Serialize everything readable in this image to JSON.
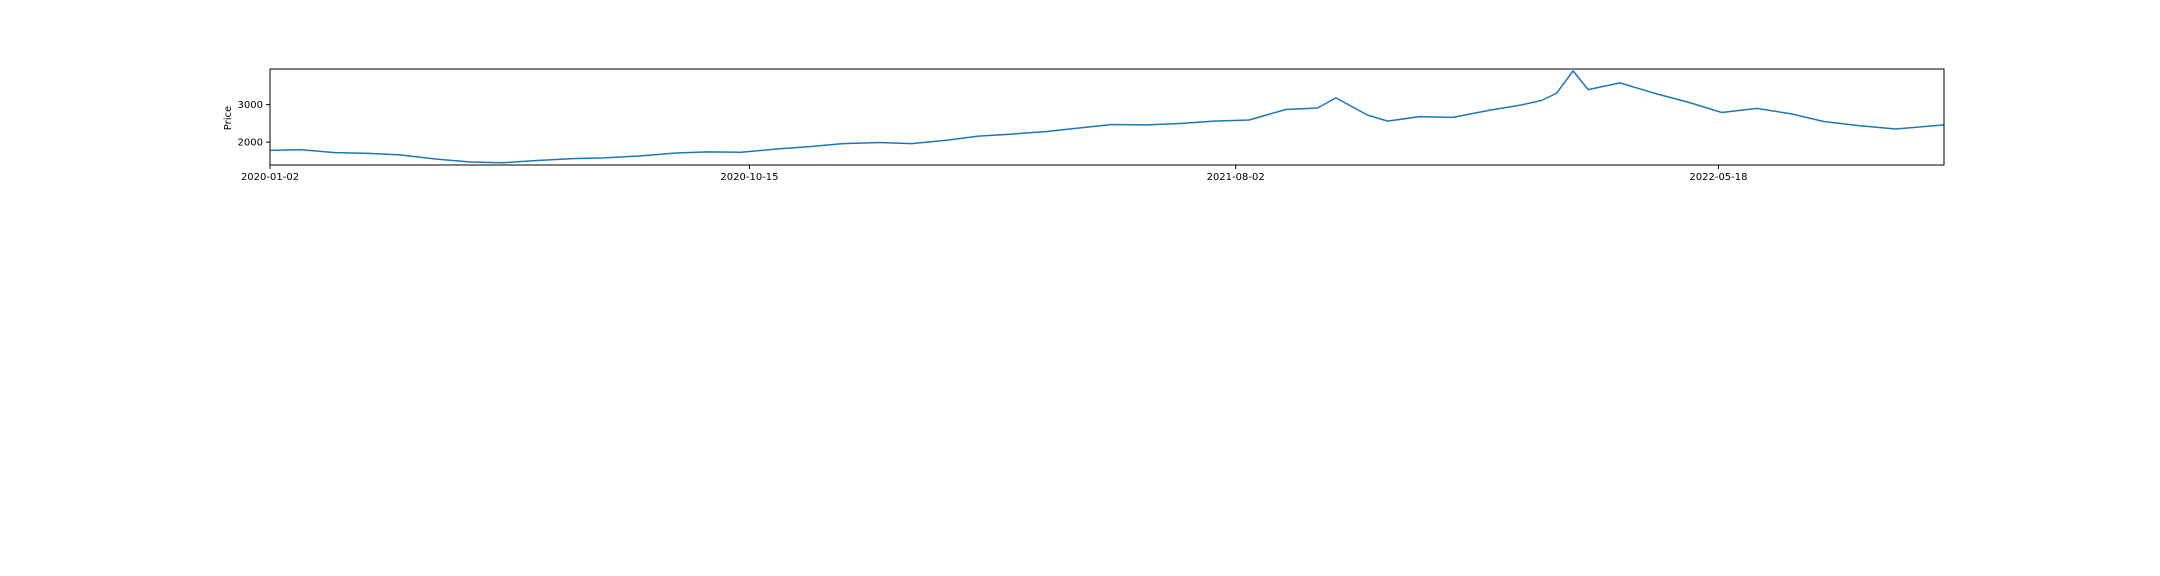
{
  "chart_data": {
    "type": "line",
    "ylabel": "Price",
    "xlabel": "",
    "x_tick_labels": [
      "2020-01-02",
      "2020-10-15",
      "2021-08-02",
      "2022-05-18"
    ],
    "x_tick_dates": [
      "2020-01-02",
      "2020-10-15",
      "2021-08-02",
      "2022-05-18"
    ],
    "xlim": [
      "2020-01-02",
      "2022-09-30"
    ],
    "y_ticks": [
      2000,
      3000
    ],
    "y_tick_labels": [
      "2000",
      "3000"
    ],
    "ylim": [
      1390,
      3950
    ],
    "grid": false,
    "legend": "none",
    "line_color": "#1f77b4",
    "series": [
      {
        "x": [
          "2020-01-02",
          "2020-01-20",
          "2020-02-10",
          "2020-03-01",
          "2020-03-20",
          "2020-04-10",
          "2020-05-01",
          "2020-05-20",
          "2020-06-10",
          "2020-07-01",
          "2020-07-20",
          "2020-08-10",
          "2020-09-01",
          "2020-09-20",
          "2020-10-10",
          "2020-11-01",
          "2020-11-20",
          "2020-12-10",
          "2021-01-01",
          "2021-01-20",
          "2021-02-10",
          "2021-03-01",
          "2021-03-20",
          "2021-04-10",
          "2021-05-01",
          "2021-05-20",
          "2021-06-10",
          "2021-07-01",
          "2021-07-20",
          "2021-08-10",
          "2021-09-01",
          "2021-09-20",
          "2021-10-01",
          "2021-10-20",
          "2021-11-01",
          "2021-11-20",
          "2021-12-10",
          "2022-01-01",
          "2022-01-20",
          "2022-02-01",
          "2022-02-10",
          "2022-02-20",
          "2022-03-01",
          "2022-03-20",
          "2022-04-10",
          "2022-05-01",
          "2022-05-20",
          "2022-06-10",
          "2022-07-01",
          "2022-07-20",
          "2022-08-10",
          "2022-09-01",
          "2022-09-30"
        ],
        "values": [
          1780,
          1800,
          1720,
          1700,
          1660,
          1550,
          1470,
          1450,
          1510,
          1560,
          1580,
          1630,
          1710,
          1740,
          1730,
          1820,
          1880,
          1960,
          1990,
          1960,
          2050,
          2160,
          2210,
          2280,
          2380,
          2470,
          2460,
          2500,
          2560,
          2590,
          2870,
          2910,
          3180,
          2720,
          2560,
          2680,
          2660,
          2850,
          2990,
          3110,
          3300,
          3900,
          3400,
          3580,
          3300,
          3050,
          2790,
          2900,
          2750,
          2550,
          2440,
          2350,
          2460
        ]
      }
    ]
  }
}
